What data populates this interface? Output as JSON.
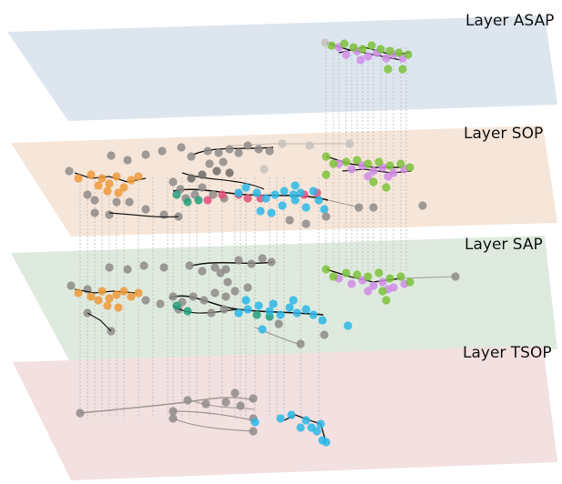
{
  "layers": [
    {
      "key": "asap",
      "label": "Layer ASAP",
      "plane_color": "#dde6ef"
    },
    {
      "key": "sop",
      "label": "Layer SOP",
      "plane_color": "#f6e6d9"
    },
    {
      "key": "sap",
      "label": "Layer SAP",
      "plane_color": "#dfeadf"
    },
    {
      "key": "tsop",
      "label": "Layer TSOP",
      "plane_color": "#f3e0e0"
    }
  ],
  "colors": {
    "orange": "#ee9a3a",
    "blue": "#2ab7e6",
    "green": "#7cc23a",
    "purple": "#d08ce6",
    "grey": "#8f8b88",
    "dark_grey": "#6f6a66",
    "light_grey": "#c6c1bd",
    "teal": "#22a07e",
    "pink": "#e0507a",
    "edge": "#1a1a1a",
    "edge_light": "#9e9994",
    "connector": "#b9b9b9"
  }
}
